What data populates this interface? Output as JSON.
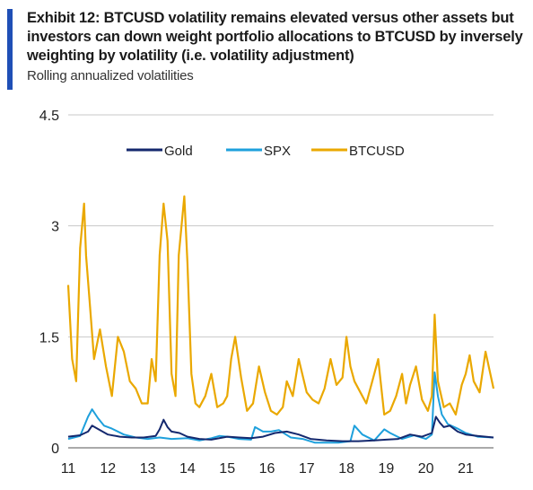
{
  "header": {
    "title": "Exhibit 12: BTCUSD volatility remains elevated versus other assets but  investors can down weight portfolio allocations to BTCUSD by inversely weighting by volatility (i.e. volatility adjustment)",
    "subtitle": "Rolling annualized volatilities"
  },
  "colors": {
    "accent": "#1f4fb6",
    "gold": "#14286e",
    "spx": "#1ea0dc",
    "btcusd": "#eaa800",
    "grid": "#c8c8c8"
  },
  "chart_data": {
    "type": "line",
    "title": "Exhibit 12: BTCUSD volatility remains elevated versus other assets but  investors can down weight portfolio allocations to BTCUSD by inversely weighting by volatility (i.e. volatility adjustment)",
    "subtitle": "Rolling annualized volatilities",
    "xlabel": "",
    "ylabel": "",
    "xlim": [
      2011.0,
      2021.7
    ],
    "ylim": [
      0,
      4.5
    ],
    "yticks": [
      0,
      1.5,
      3,
      4.5
    ],
    "ytick_labels": [
      "0",
      "1.5",
      "3",
      "4.5"
    ],
    "xticks": [
      2011,
      2012,
      2013,
      2014,
      2015,
      2016,
      2017,
      2018,
      2019,
      2020,
      2021
    ],
    "xtick_labels": [
      "11",
      "12",
      "13",
      "14",
      "15",
      "16",
      "17",
      "18",
      "19",
      "20",
      "21"
    ],
    "grid": true,
    "legend": "top-center",
    "series": [
      {
        "name": "Gold",
        "color": "#14286e",
        "x": [
          2011.0,
          2011.3,
          2011.5,
          2011.6,
          2011.8,
          2012.0,
          2012.3,
          2012.6,
          2012.9,
          2013.2,
          2013.3,
          2013.4,
          2013.5,
          2013.6,
          2013.8,
          2014.0,
          2014.3,
          2014.6,
          2015.0,
          2015.3,
          2015.6,
          2015.9,
          2016.2,
          2016.5,
          2016.8,
          2017.1,
          2017.5,
          2017.9,
          2018.3,
          2018.7,
          2019.0,
          2019.3,
          2019.6,
          2019.9,
          2020.15,
          2020.25,
          2020.35,
          2020.45,
          2020.6,
          2020.8,
          2021.0,
          2021.3,
          2021.7
        ],
        "y": [
          0.15,
          0.17,
          0.22,
          0.3,
          0.24,
          0.18,
          0.15,
          0.14,
          0.14,
          0.16,
          0.25,
          0.38,
          0.28,
          0.22,
          0.2,
          0.15,
          0.12,
          0.11,
          0.15,
          0.14,
          0.13,
          0.15,
          0.2,
          0.22,
          0.18,
          0.12,
          0.1,
          0.09,
          0.09,
          0.1,
          0.11,
          0.12,
          0.18,
          0.15,
          0.2,
          0.42,
          0.34,
          0.28,
          0.3,
          0.22,
          0.18,
          0.16,
          0.14
        ]
      },
      {
        "name": "SPX",
        "color": "#1ea0dc",
        "x": [
          2011.0,
          2011.3,
          2011.5,
          2011.6,
          2011.75,
          2011.9,
          2012.1,
          2012.4,
          2012.7,
          2013.0,
          2013.3,
          2013.6,
          2014.0,
          2014.3,
          2014.6,
          2014.8,
          2015.0,
          2015.3,
          2015.6,
          2015.7,
          2015.9,
          2016.1,
          2016.3,
          2016.6,
          2016.9,
          2017.2,
          2017.5,
          2017.8,
          2018.1,
          2018.2,
          2018.4,
          2018.7,
          2018.95,
          2019.1,
          2019.4,
          2019.7,
          2020.0,
          2020.15,
          2020.22,
          2020.3,
          2020.4,
          2020.55,
          2020.8,
          2021.0,
          2021.3,
          2021.7
        ],
        "y": [
          0.12,
          0.16,
          0.42,
          0.52,
          0.4,
          0.3,
          0.26,
          0.18,
          0.14,
          0.12,
          0.14,
          0.12,
          0.13,
          0.1,
          0.13,
          0.16,
          0.15,
          0.12,
          0.11,
          0.28,
          0.22,
          0.22,
          0.24,
          0.14,
          0.12,
          0.07,
          0.07,
          0.07,
          0.09,
          0.3,
          0.18,
          0.1,
          0.25,
          0.2,
          0.12,
          0.17,
          0.12,
          0.18,
          1.02,
          0.7,
          0.45,
          0.32,
          0.26,
          0.2,
          0.15,
          0.14
        ]
      },
      {
        "name": "BTCUSD",
        "color": "#eaa800",
        "x": [
          2011.0,
          2011.1,
          2011.2,
          2011.3,
          2011.4,
          2011.45,
          2011.55,
          2011.65,
          2011.8,
          2011.95,
          2012.1,
          2012.25,
          2012.4,
          2012.55,
          2012.7,
          2012.85,
          2013.0,
          2013.1,
          2013.2,
          2013.3,
          2013.4,
          2013.5,
          2013.6,
          2013.7,
          2013.78,
          2013.85,
          2013.92,
          2014.0,
          2014.1,
          2014.2,
          2014.3,
          2014.45,
          2014.6,
          2014.75,
          2014.9,
          2015.0,
          2015.1,
          2015.2,
          2015.35,
          2015.5,
          2015.65,
          2015.8,
          2015.95,
          2016.1,
          2016.25,
          2016.4,
          2016.5,
          2016.65,
          2016.8,
          2017.0,
          2017.15,
          2017.3,
          2017.45,
          2017.6,
          2017.75,
          2017.9,
          2018.0,
          2018.1,
          2018.2,
          2018.35,
          2018.5,
          2018.65,
          2018.8,
          2018.95,
          2019.1,
          2019.25,
          2019.4,
          2019.5,
          2019.6,
          2019.75,
          2019.9,
          2020.05,
          2020.15,
          2020.22,
          2020.3,
          2020.45,
          2020.6,
          2020.75,
          2020.9,
          2021.0,
          2021.1,
          2021.2,
          2021.35,
          2021.5,
          2021.7
        ],
        "y": [
          2.2,
          1.2,
          0.9,
          2.7,
          3.3,
          2.6,
          1.9,
          1.2,
          1.6,
          1.1,
          0.7,
          1.5,
          1.3,
          0.9,
          0.8,
          0.6,
          0.6,
          1.2,
          0.9,
          2.6,
          3.3,
          2.8,
          1.0,
          0.7,
          2.6,
          3.0,
          3.4,
          2.5,
          1.0,
          0.6,
          0.55,
          0.7,
          1.0,
          0.55,
          0.6,
          0.7,
          1.2,
          1.5,
          0.95,
          0.5,
          0.6,
          1.1,
          0.75,
          0.5,
          0.45,
          0.55,
          0.9,
          0.7,
          1.2,
          0.75,
          0.65,
          0.6,
          0.8,
          1.2,
          0.85,
          0.95,
          1.5,
          1.1,
          0.9,
          0.75,
          0.6,
          0.9,
          1.2,
          0.45,
          0.5,
          0.7,
          1.0,
          0.6,
          0.85,
          1.1,
          0.65,
          0.5,
          0.7,
          1.8,
          0.9,
          0.55,
          0.6,
          0.45,
          0.85,
          1.0,
          1.25,
          0.9,
          0.75,
          1.3,
          0.8
        ]
      }
    ]
  }
}
